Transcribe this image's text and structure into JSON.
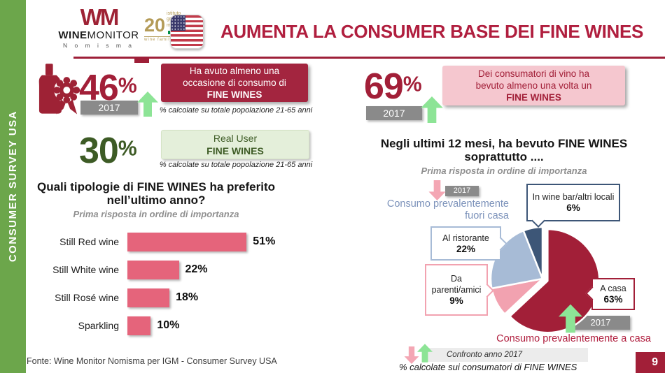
{
  "sidebar": {
    "label": "CONSUMER SURVEY USA",
    "bg_color": "#6CA64B"
  },
  "header": {
    "title": "AUMENTA LA CONSUMER BASE DEI FINE WINES",
    "title_color": "#B01E3E",
    "winemonitor_logo": {
      "mark": "WM",
      "name_bold": "WINE",
      "name_regular": "MONITOR",
      "sub": "N o m i s m a"
    },
    "grandi_marchi_logo": {
      "number": "20",
      "line1": "istituto",
      "line2": "grandi marchi",
      "line3": "wine family heritage"
    }
  },
  "left": {
    "stat_consumption": {
      "value": "46",
      "percent_sign": "%",
      "year": "2017",
      "value_color": "#A21F38",
      "box": {
        "line1": "Ha avuto almeno una",
        "line2": "occasione di consumo di",
        "bold": "FINE WINES",
        "bg": "#A3253F"
      },
      "caption": "% calcolate su totale popolazione 21-65 anni"
    },
    "stat_real_user": {
      "value": "30",
      "percent_sign": "%",
      "value_color": "#3D5B25",
      "box": {
        "line1": "Real User",
        "bold": "FINE WINES",
        "bg": "#E4EFDA"
      },
      "caption": "% calcolate su totale popolazione 21-65 anni"
    },
    "question": {
      "line1": "Quali tipologie di FINE WINES ha preferito",
      "line2": "nell’ultimo anno?",
      "subtitle": "Prima risposta in ordine di importanza"
    }
  },
  "right": {
    "stat_drinkers": {
      "value": "69",
      "percent_sign": "%",
      "year": "2017",
      "value_color": "#A21F38",
      "box": {
        "line1": "Dei consumatori di vino ha",
        "line2": "bevuto almeno una volta un",
        "bold": "FINE WINES",
        "bg": "#F5C7CF"
      }
    },
    "question": {
      "line1": "Negli ultimi 12 mesi, ha bevuto FINE WINES",
      "line2": "soprattutto ....",
      "subtitle": "Prima risposta in ordine di importanza"
    },
    "out_year": "2017",
    "out_label_line1": "Consumo prevalentemente",
    "out_label_line2": "fuori casa",
    "home_year": "2017",
    "home_label": "Consumo prevalentemente a casa",
    "callouts": {
      "wine_bar": {
        "line1": "In wine bar/altri locali",
        "pct": "6%",
        "color": "#3D5677"
      },
      "ristorante": {
        "line1": "Al ristorante",
        "pct": "22%",
        "color": "#A7BBD6"
      },
      "parenti": {
        "line1": "Da",
        "line2": "parenti/amici",
        "pct": "9%",
        "color": "#F2A2B0"
      },
      "casa": {
        "line1": "A casa",
        "pct": "63%",
        "color": "#A21F38"
      }
    },
    "legend": {
      "label": "Confronto anno 2017"
    },
    "caption": "% calcolate sui consumatori di FINE WINES"
  },
  "footer": {
    "fonte": "Fonte: Wine Monitor Nomisma per IGM - Consumer Survey USA",
    "page": "9",
    "page_bg": "#A21F38"
  },
  "chart_data": [
    {
      "type": "bar",
      "orientation": "horizontal",
      "title": "Quali tipologie di FINE WINES ha preferito nell’ultimo anno?",
      "subtitle": "Prima risposta in ordine di importanza",
      "categories": [
        "Still Red wine",
        "Still White wine",
        "Still Rosé wine",
        "Sparkling"
      ],
      "values": [
        51,
        22,
        18,
        10
      ],
      "value_labels": [
        "51%",
        "22%",
        "18%",
        "10%"
      ],
      "unit": "%",
      "bar_color": "#E5647B",
      "xlim": [
        0,
        60
      ],
      "grid": false
    },
    {
      "type": "pie",
      "title": "Negli ultimi 12 mesi, ha bevuto FINE WINES soprattutto ....",
      "subtitle": "Prima risposta in ordine di importanza",
      "slices": [
        {
          "label": "A casa",
          "value": 63,
          "color": "#A21F38",
          "explode": true
        },
        {
          "label": "Da parenti/amici",
          "value": 9,
          "color": "#F2A2B0",
          "explode": false
        },
        {
          "label": "Al ristorante",
          "value": 22,
          "color": "#A7BBD6",
          "explode": false
        },
        {
          "label": "In wine bar/altri locali",
          "value": 6,
          "color": "#3D5677",
          "explode": false
        }
      ],
      "start_angle_deg": 0,
      "direction": "clockwise",
      "annotations": [
        "Consumo prevalentemente fuori casa",
        "Consumo prevalentemente a casa",
        "Confronto anno 2017"
      ]
    }
  ]
}
